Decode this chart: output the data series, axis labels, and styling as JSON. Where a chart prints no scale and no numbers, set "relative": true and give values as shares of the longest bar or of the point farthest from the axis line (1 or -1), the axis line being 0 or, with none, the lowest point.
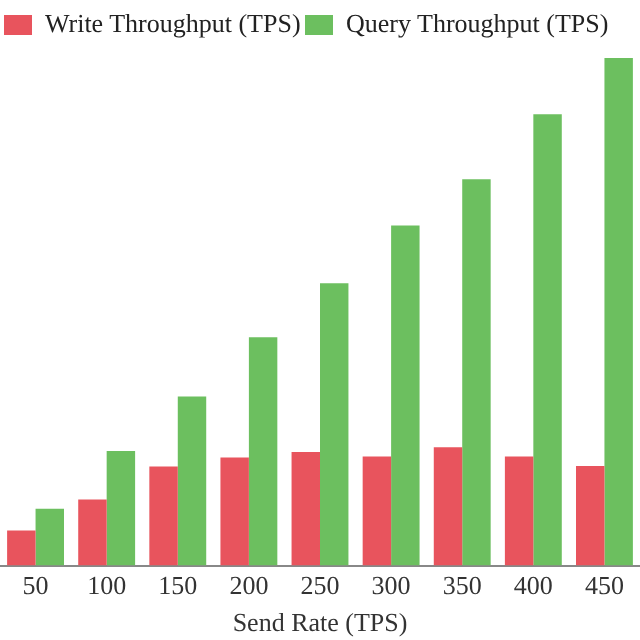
{
  "chart_data": {
    "type": "bar",
    "relative": true,
    "xlabel": "Send Rate (TPS)",
    "categories": [
      "50",
      "100",
      "150",
      "200",
      "250",
      "300",
      "350",
      "400",
      "450"
    ],
    "series": [
      {
        "name": "Write Throughput (TPS)",
        "color": "#e8545d",
        "values": [
          0.069,
          0.13,
          0.195,
          0.213,
          0.224,
          0.215,
          0.233,
          0.215,
          0.196
        ]
      },
      {
        "name": "Query Throughput (TPS)",
        "color": "#6cbf5f",
        "values": [
          0.112,
          0.226,
          0.333,
          0.45,
          0.556,
          0.67,
          0.761,
          0.889,
          1
        ]
      }
    ],
    "grid": false,
    "legend": "top left"
  }
}
